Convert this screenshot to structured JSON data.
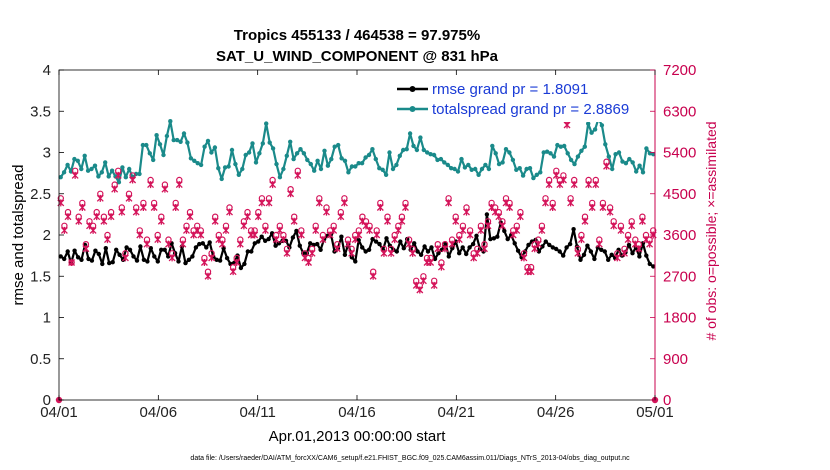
{
  "chart_data": {
    "type": "line",
    "title_line1": "Tropics 455133 / 464538 = 97.975%",
    "title_line2": "SAT_U_WIND_COMPONENT @ 831 hPa",
    "xlabel": "Apr.01,2013 00:00:00 start",
    "ylabel_left": "rmse and totalspread",
    "ylabel_right": "# of obs: o=possible; ×=assimilated",
    "footer": "data file: /Users/raeder/DAI/ATM_forcXX/CAM6_setup/f.e21.FHIST_BGC.f09_025.CAM6assim.011/Diags_NTrS_2013-04/obs_diag_output.nc",
    "x_ticks": [
      "04/01",
      "04/06",
      "04/11",
      "04/16",
      "04/21",
      "04/26",
      "05/01"
    ],
    "x_range_days": [
      0,
      30
    ],
    "y_left_ticks": [
      "0",
      "0.5",
      "1",
      "1.5",
      "2",
      "2.5",
      "3",
      "3.5",
      "4"
    ],
    "y_left_range": [
      0,
      4
    ],
    "y_right_ticks": [
      "0",
      "900",
      "1800",
      "2700",
      "3600",
      "4500",
      "5400",
      "6300",
      "7200"
    ],
    "y_right_range": [
      0,
      7200
    ],
    "grid": false,
    "legend_location": "top-right",
    "legend": [
      "rmse grand pr = 1.8091",
      "totalspread grand pr = 2.8869"
    ],
    "colors": {
      "rmse": "#000000",
      "spread": "#1a8a8a",
      "obs": "#d4145a",
      "axis_right": "#c8004e",
      "legend_text": "#1a3bd6"
    },
    "series": [
      {
        "name": "rmse",
        "axis": "left",
        "values": [
          1.74,
          1.71,
          1.8,
          1.66,
          1.81,
          1.73,
          1.7,
          1.88,
          1.71,
          1.69,
          1.81,
          1.77,
          1.65,
          1.84,
          1.66,
          1.67,
          1.82,
          1.76,
          1.7,
          1.85,
          1.82,
          1.74,
          1.69,
          1.86,
          1.7,
          1.68,
          1.84,
          1.74,
          1.68,
          1.82,
          1.82,
          1.74,
          1.9,
          1.78,
          1.68,
          1.86,
          1.66,
          1.7,
          1.74,
          1.85,
          1.89,
          1.9,
          1.85,
          1.91,
          1.74,
          1.7,
          1.69,
          1.84,
          1.72,
          1.65,
          1.66,
          1.75,
          1.6,
          1.65,
          1.8,
          1.8,
          1.9,
          1.92,
          1.98,
          1.93,
          1.95,
          2.02,
          1.87,
          1.9,
          1.93,
          1.93,
          1.85,
          1.97,
          2.05,
          1.87,
          1.78,
          1.78,
          1.9,
          1.88,
          1.89,
          1.82,
          1.95,
          1.99,
          2.01,
          1.8,
          1.84,
          1.98,
          1.76,
          1.89,
          1.73,
          1.68,
          1.94,
          1.85,
          1.8,
          1.82,
          1.95,
          1.92,
          1.89,
          1.82,
          1.96,
          1.87,
          1.82,
          1.8,
          1.92,
          1.84,
          1.95,
          1.82,
          1.9,
          1.8,
          1.76,
          1.86,
          1.8,
          1.85,
          1.71,
          1.78,
          1.82,
          1.9,
          1.74,
          1.84,
          1.92,
          1.78,
          1.85,
          1.77,
          1.85,
          1.89,
          1.99,
          1.83,
          1.8,
          2.25,
          1.95,
          1.96,
          1.98,
          2.15,
          2.05,
          1.95,
          2.0,
          1.9,
          1.81,
          1.73,
          1.8,
          1.88,
          1.92,
          1.94,
          1.8,
          1.86,
          1.92,
          1.88,
          1.85,
          1.83,
          1.8,
          1.75,
          1.85,
          1.89,
          2.07,
          1.86,
          1.7,
          1.76,
          1.87,
          1.8,
          1.71,
          1.85,
          1.82,
          1.8,
          1.7,
          1.76,
          1.72,
          1.82,
          1.75,
          1.79,
          1.88,
          1.78,
          1.85,
          1.74,
          1.9,
          1.75,
          1.65,
          1.62
        ]
      },
      {
        "name": "totalspread",
        "axis": "left",
        "values": [
          2.7,
          2.76,
          2.85,
          2.77,
          2.92,
          2.9,
          2.8,
          2.96,
          2.78,
          2.8,
          2.84,
          2.71,
          2.76,
          2.88,
          2.71,
          2.78,
          2.71,
          2.64,
          2.82,
          2.7,
          2.8,
          2.7,
          2.74,
          2.74,
          3.09,
          3.09,
          2.99,
          2.91,
          3.21,
          3.1,
          2.97,
          3.2,
          3.38,
          3.15,
          3.15,
          3.13,
          3.23,
          3.12,
          2.93,
          2.9,
          2.87,
          2.85,
          3.07,
          3.14,
          3.0,
          3.06,
          2.81,
          2.68,
          2.82,
          2.83,
          3.03,
          2.86,
          2.73,
          2.8,
          2.97,
          3.0,
          3.11,
          2.88,
          2.99,
          3.11,
          3.35,
          3.12,
          3.05,
          2.86,
          2.7,
          2.8,
          2.96,
          3.13,
          2.92,
          2.99,
          3.04,
          2.99,
          2.91,
          2.86,
          2.78,
          2.9,
          2.8,
          3.02,
          2.84,
          2.92,
          3.07,
          3.09,
          2.93,
          2.9,
          2.76,
          2.83,
          2.83,
          2.87,
          2.87,
          2.94,
          2.97,
          3.04,
          2.92,
          2.81,
          2.79,
          2.73,
          3.0,
          2.8,
          2.85,
          2.96,
          3.03,
          3.04,
          3.23,
          3.08,
          3.03,
          3.18,
          3.03,
          3.0,
          2.98,
          2.97,
          2.91,
          2.92,
          2.88,
          2.85,
          2.81,
          2.8,
          2.77,
          2.92,
          2.82,
          2.85,
          2.79,
          2.8,
          2.73,
          2.8,
          2.85,
          2.8,
          3.08,
          2.99,
          2.86,
          2.88,
          3.04,
          3.0,
          2.91,
          2.79,
          2.81,
          2.72,
          2.8,
          2.81,
          2.69,
          2.73,
          2.76,
          3.0,
          3.01,
          2.99,
          2.95,
          3.09,
          3.07,
          3.08,
          2.99,
          2.91,
          2.86,
          2.95,
          3.02,
          3.07,
          3.35,
          3.24,
          3.28,
          3.41,
          3.33,
          3.1,
          2.95,
          2.8,
          2.98,
          3.0,
          2.89,
          2.87,
          2.92,
          2.88,
          2.77,
          2.84,
          2.76,
          3.05,
          2.99,
          2.98
        ]
      },
      {
        "name": "obs_possible",
        "axis": "right",
        "marker": "o",
        "values": [
          4400,
          3800,
          4100,
          3000,
          5000,
          4000,
          4300,
          3400,
          3900,
          3800,
          4100,
          4500,
          4000,
          3600,
          4100,
          4700,
          5000,
          4200,
          3200,
          4500,
          4900,
          4200,
          3700,
          4300,
          3500,
          4800,
          4300,
          3600,
          4000,
          4700,
          3500,
          3200,
          4300,
          4800,
          3500,
          3800,
          4100,
          3700,
          3800,
          3700,
          3100,
          2800,
          3200,
          4000,
          3600,
          3500,
          3800,
          4200,
          2900,
          3100,
          3500,
          3900,
          4100,
          3700,
          3700,
          4100,
          4400,
          3800,
          4400,
          4800,
          3600,
          3800,
          3600,
          3300,
          4600,
          4000,
          5000,
          3700,
          3200,
          3100,
          3300,
          3800,
          4400,
          3600,
          4200,
          3700,
          3800,
          3400,
          4100,
          4400,
          3500,
          3300,
          3600,
          3700,
          4000,
          3900,
          3800,
          2800,
          3700,
          4300,
          3300,
          4000,
          3300,
          3600,
          3800,
          4000,
          4300,
          3500,
          3300,
          2600,
          2500,
          2700,
          3100,
          3100,
          2600,
          3400,
          3000,
          3400,
          4400,
          3500,
          4000,
          3600,
          3800,
          4200,
          3700,
          3200,
          3300,
          3800,
          3400,
          3900,
          4300,
          4200,
          4100,
          3900,
          4400,
          4300,
          3700,
          3800,
          4100,
          3200,
          2900,
          2900,
          3400,
          3500,
          3800,
          4400,
          4800,
          4300,
          5000,
          4800,
          4900,
          6100,
          4400,
          4800,
          3300,
          3600,
          4000,
          4800,
          4300,
          4800,
          3500,
          4300,
          5200,
          4200,
          3900,
          3200,
          3800,
          3300,
          3600,
          3900,
          3500,
          3400,
          4000,
          3600,
          3500,
          3700
        ]
      },
      {
        "name": "obs_assimilated",
        "axis": "right",
        "marker": "x",
        "values": [
          4300,
          3700,
          4000,
          3000,
          4900,
          3900,
          4200,
          3300,
          3800,
          3700,
          4000,
          4400,
          3900,
          3500,
          4000,
          4600,
          4900,
          4100,
          3100,
          4400,
          4800,
          4100,
          3600,
          4200,
          3400,
          4700,
          4200,
          3500,
          3900,
          4600,
          3400,
          3100,
          4200,
          4700,
          3400,
          3700,
          4000,
          3600,
          3700,
          3600,
          3000,
          2700,
          3100,
          3900,
          3500,
          3400,
          3700,
          4100,
          2800,
          3000,
          3400,
          3800,
          4000,
          3600,
          3600,
          4000,
          4300,
          3700,
          4300,
          4700,
          3500,
          3700,
          3500,
          3200,
          4500,
          3900,
          4900,
          3600,
          3100,
          3000,
          3200,
          3700,
          4300,
          3500,
          4100,
          3600,
          3700,
          3300,
          4000,
          4300,
          3400,
          3200,
          3500,
          3600,
          3900,
          3800,
          3700,
          2700,
          3600,
          4200,
          3200,
          3900,
          3200,
          3500,
          3700,
          3900,
          4200,
          3400,
          3200,
          2500,
          2400,
          2600,
          3000,
          3000,
          2500,
          3300,
          2900,
          3300,
          4300,
          3400,
          3900,
          3500,
          3700,
          4100,
          3600,
          3100,
          3200,
          3700,
          3300,
          3800,
          4200,
          4100,
          4000,
          3800,
          4300,
          4200,
          3600,
          3700,
          4000,
          3100,
          2800,
          2800,
          3300,
          3400,
          3700,
          4300,
          4700,
          4200,
          4900,
          4700,
          4800,
          6000,
          4300,
          4700,
          3200,
          3500,
          3900,
          4700,
          4200,
          4700,
          3400,
          4200,
          5100,
          4100,
          3800,
          3100,
          3700,
          3200,
          3500,
          3800,
          3400,
          3300,
          3900,
          3500,
          3400,
          3600
        ]
      }
    ]
  }
}
